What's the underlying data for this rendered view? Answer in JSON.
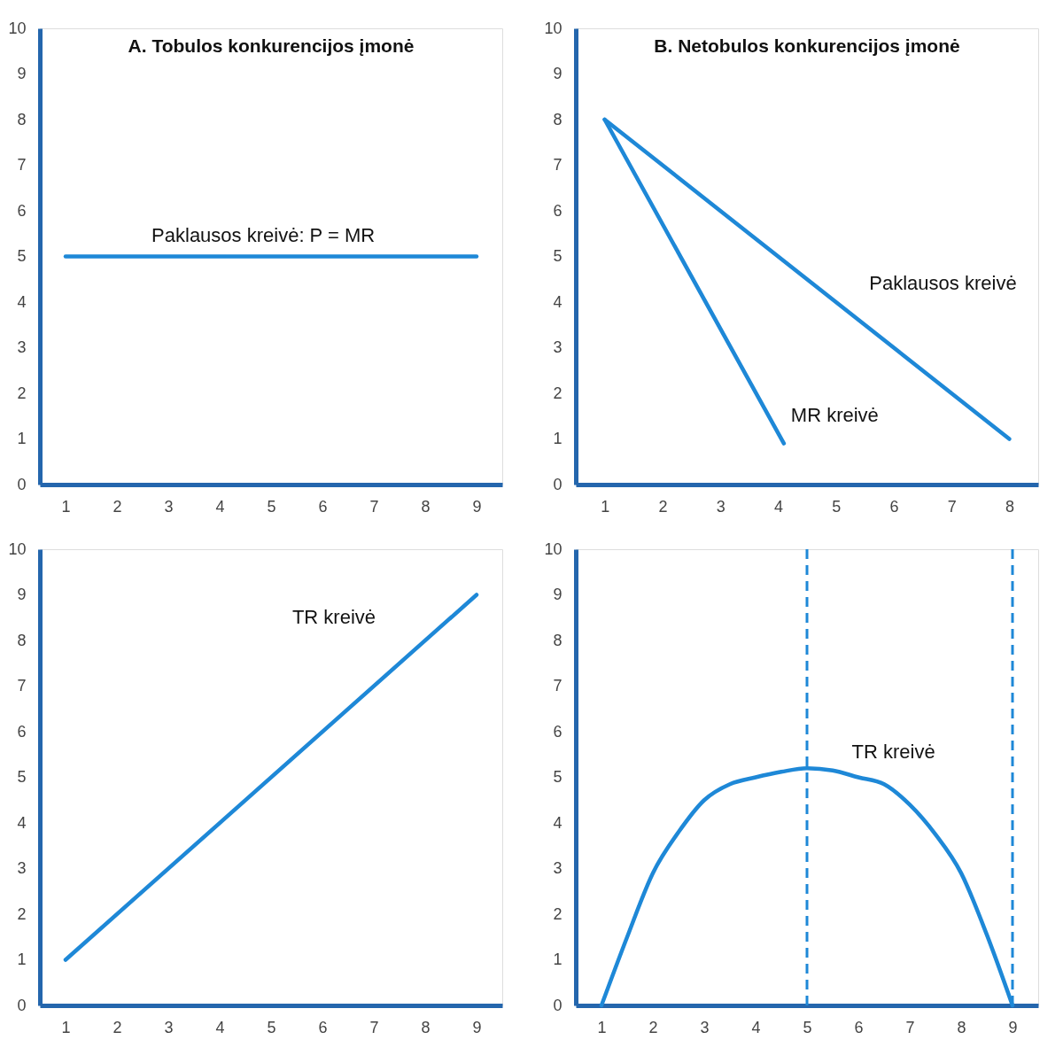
{
  "chart_data": [
    {
      "type": "line",
      "title": "A. Tobulos konkurencijos įmonė",
      "x": [
        1,
        9
      ],
      "series": [
        {
          "color": "#1e88d7",
          "values": [
            5,
            5
          ]
        }
      ],
      "xlim": [
        0.5,
        9.5
      ],
      "ylim": [
        0,
        10
      ],
      "xticks": [
        1,
        2,
        3,
        4,
        5,
        6,
        7,
        8,
        9
      ],
      "yticks": [
        0,
        1,
        2,
        3,
        4,
        5,
        6,
        7,
        8,
        9,
        10
      ],
      "annotations": [
        "Paklausos kreivė: P = MR"
      ]
    },
    {
      "type": "line",
      "title": "B. Netobulos konkurencijos įmonė",
      "series": [
        {
          "color": "#1e88d7",
          "x": [
            1,
            8
          ],
          "values": [
            8,
            1
          ]
        },
        {
          "color": "#1e88d7",
          "x": [
            1,
            4.1
          ],
          "values": [
            8,
            0.9
          ]
        }
      ],
      "xlim": [
        0.5,
        8.5
      ],
      "ylim": [
        0,
        10
      ],
      "xticks": [
        1,
        2,
        3,
        4,
        5,
        6,
        7,
        8
      ],
      "yticks": [
        0,
        1,
        2,
        3,
        4,
        5,
        6,
        7,
        8,
        9,
        10
      ],
      "annotations": [
        "Paklausos kreivė",
        "MR kreivė"
      ]
    },
    {
      "type": "line",
      "x": [
        1,
        9
      ],
      "series": [
        {
          "color": "#1e88d7",
          "values": [
            1,
            9
          ]
        }
      ],
      "xlim": [
        0.5,
        9.5
      ],
      "ylim": [
        0,
        10
      ],
      "xticks": [
        1,
        2,
        3,
        4,
        5,
        6,
        7,
        8,
        9
      ],
      "yticks": [
        0,
        1,
        2,
        3,
        4,
        5,
        6,
        7,
        8,
        9,
        10
      ],
      "annotations": [
        "TR kreivė"
      ]
    },
    {
      "type": "line",
      "x": [
        1,
        1.5,
        2,
        2.5,
        3,
        3.5,
        4,
        4.5,
        5,
        5.5,
        6,
        6.5,
        7,
        7.5,
        8,
        8.5,
        9
      ],
      "series": [
        {
          "color": "#1e88d7",
          "values": [
            0,
            1.5,
            2.9,
            3.8,
            4.5,
            4.85,
            5.0,
            5.12,
            5.2,
            5.15,
            5.0,
            4.85,
            4.4,
            3.75,
            2.9,
            1.55,
            0
          ]
        }
      ],
      "ref_lines": [
        {
          "axis": "x",
          "value": 5,
          "line_style": "dashed",
          "color": "#1e88d7"
        },
        {
          "axis": "x",
          "value": 9,
          "line_style": "dashed",
          "color": "#1e88d7"
        }
      ],
      "xlim": [
        0.5,
        9.5
      ],
      "ylim": [
        0,
        10
      ],
      "xticks": [
        1,
        2,
        3,
        4,
        5,
        6,
        7,
        8,
        9
      ],
      "yticks": [
        0,
        1,
        2,
        3,
        4,
        5,
        6,
        7,
        8,
        9,
        10
      ],
      "annotations": [
        "TR kreivė"
      ]
    }
  ]
}
